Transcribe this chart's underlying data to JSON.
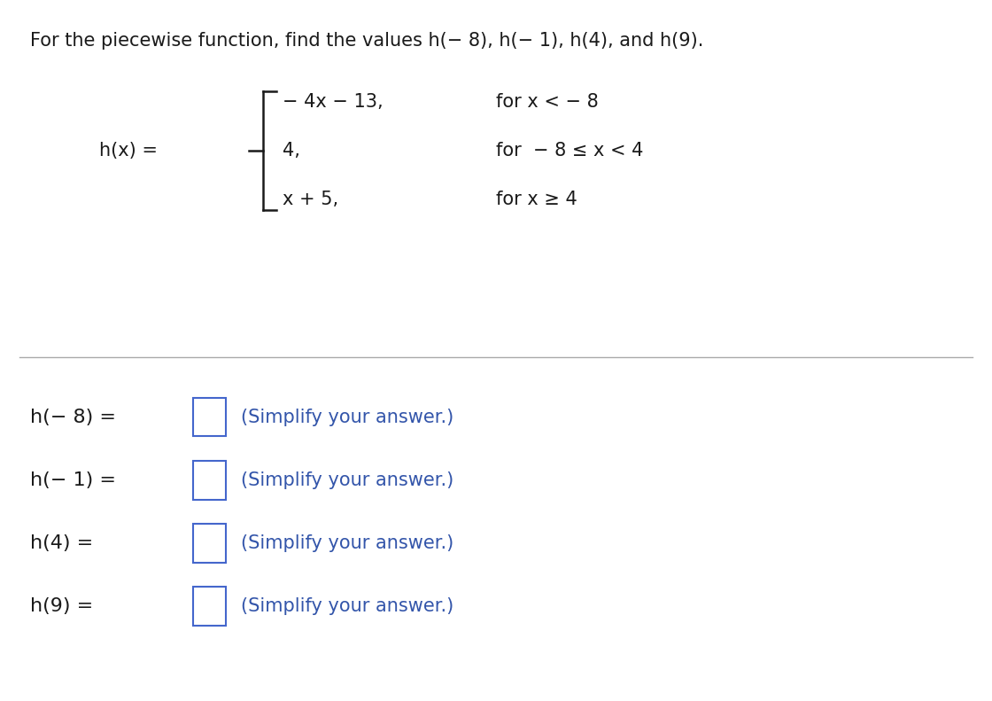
{
  "title": "For the piecewise function, find the values h(− 8), h(− 1), h(4), and h(9).",
  "title_fontsize": 15,
  "title_color": "#1a1a1a",
  "bg_color": "#ffffff",
  "piece1_expr": "− 4x − 13,",
  "piece1_cond": "for x < − 8",
  "piece2_expr": "4,",
  "piece2_cond": "for  − 8 ≤ x < 4",
  "piece3_expr": "x + 5,",
  "piece3_cond": "for x ≥ 4",
  "answer_labels": [
    "h(− 8) =",
    "h(− 1) =",
    "h(4) =",
    "h(9) ="
  ],
  "answer_suffix": "(Simplify your answer.)",
  "blue_color": "#3355aa",
  "box_color": "#4466cc",
  "math_fontsize": 15,
  "separator_color": "#aaaaaa"
}
